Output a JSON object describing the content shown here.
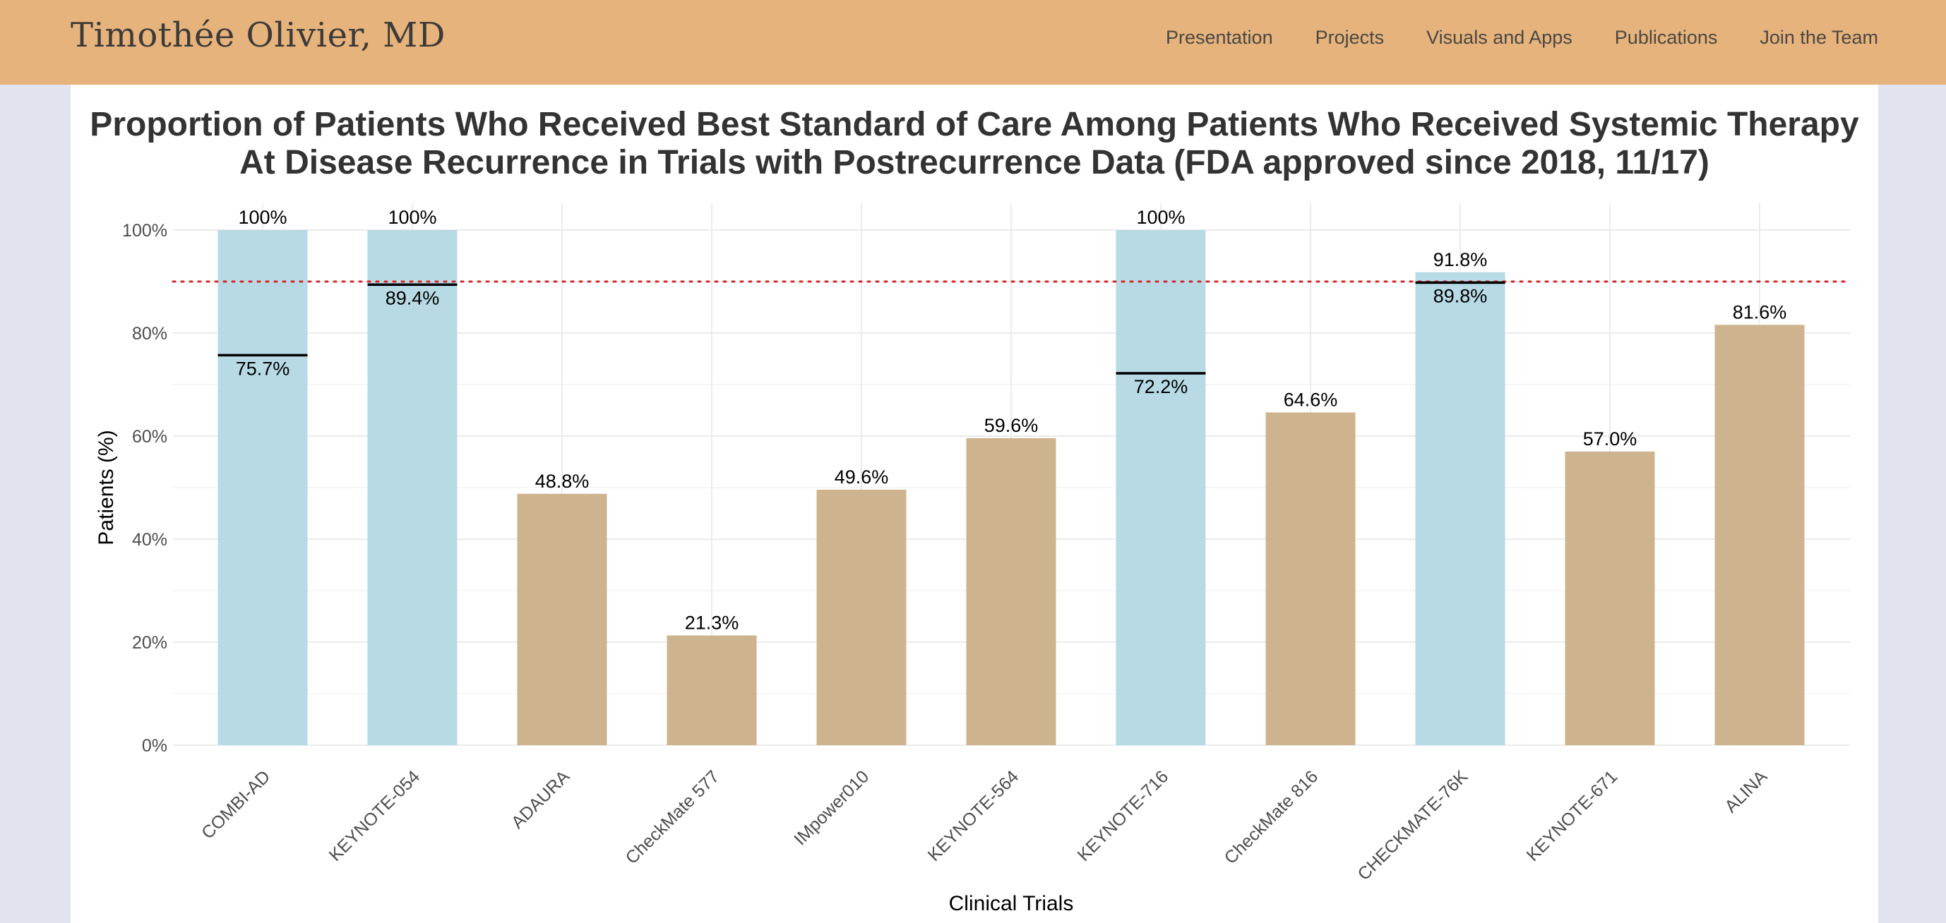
{
  "navbar": {
    "brand": "Timothée Olivier, MD",
    "links": [
      "Presentation",
      "Projects",
      "Visuals and Apps",
      "Publications",
      "Join the Team"
    ]
  },
  "colors": {
    "navbar_bg": "#e6b37d",
    "bar_blue": "#b7dae5",
    "bar_tan": "#cdb48e",
    "reference_line": "#d62728",
    "marker_line": "#000000"
  },
  "chart_data": {
    "type": "bar",
    "title": "Proportion of Patients Who Received Best Standard of Care Among Patients Who Received Systemic Therapy At Disease Recurrence in Trials with Postrecurrence Data (FDA approved since 2018, 11/17)",
    "xlabel": "Clinical Trials",
    "ylabel": "Patients (%)",
    "ylim": [
      0,
      100
    ],
    "yticks": [
      0,
      20,
      40,
      60,
      80,
      100
    ],
    "ytick_labels": [
      "0%",
      "20%",
      "40%",
      "60%",
      "80%",
      "100%"
    ],
    "grid": true,
    "reference_line": 90,
    "categories": [
      "COMBI-AD",
      "KEYNOTE-054",
      "ADAURA",
      "CheckMate 577",
      "IMpower010",
      "KEYNOTE-564",
      "KEYNOTE-716",
      "CheckMate 816",
      "CHECKMATE-76K",
      "KEYNOTE-671",
      "ALINA"
    ],
    "values": [
      100,
      100,
      48.8,
      21.3,
      49.6,
      59.6,
      100,
      64.6,
      91.8,
      57.0,
      81.6
    ],
    "value_labels": [
      "100%",
      "100%",
      "48.8%",
      "21.3%",
      "49.6%",
      "59.6%",
      "100%",
      "64.6%",
      "91.8%",
      "57.0%",
      "81.6%"
    ],
    "bar_color_group": [
      "blue",
      "blue",
      "tan",
      "tan",
      "tan",
      "tan",
      "blue",
      "tan",
      "blue",
      "tan",
      "tan"
    ],
    "markers": [
      75.7,
      89.4,
      null,
      null,
      null,
      null,
      72.2,
      null,
      89.8,
      null,
      null
    ],
    "marker_labels": [
      "75.7%",
      "89.4%",
      null,
      null,
      null,
      null,
      "72.2%",
      null,
      "89.8%",
      null,
      null
    ]
  }
}
